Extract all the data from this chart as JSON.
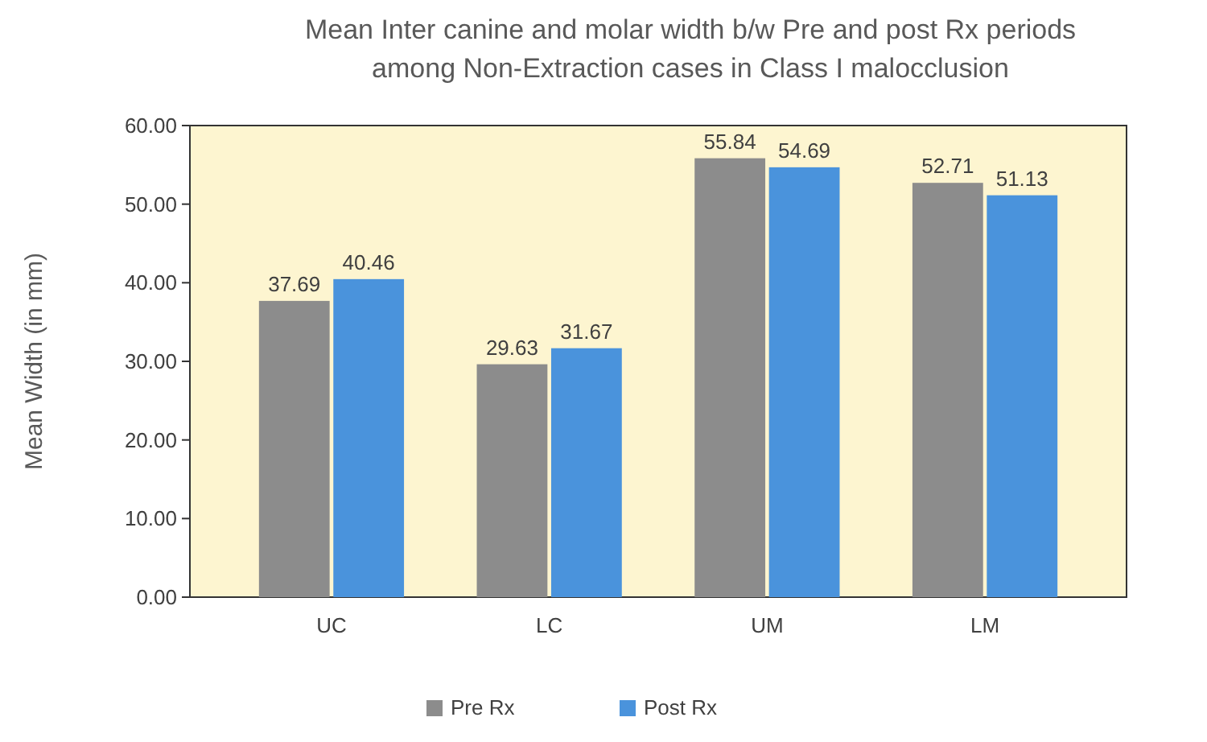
{
  "chart_data": {
    "type": "bar",
    "title": "Mean Inter canine and molar width b/w Pre and post Rx periods\namong Non-Extraction cases in Class I malocclusion",
    "ylabel": "Mean Width (in mm)",
    "categories": [
      "UC",
      "LC",
      "UM",
      "LM"
    ],
    "series": [
      {
        "name": "Pre Rx",
        "color": "#8c8c8c",
        "values": [
          37.69,
          29.63,
          55.84,
          52.71
        ]
      },
      {
        "name": "Post Rx",
        "color": "#4a93dc",
        "values": [
          40.46,
          31.67,
          54.69,
          51.13
        ]
      }
    ],
    "ylim": [
      0,
      60
    ],
    "yticks": [
      {
        "value": 0,
        "label": "0.00"
      },
      {
        "value": 10,
        "label": "10.00"
      },
      {
        "value": 20,
        "label": "20.00"
      },
      {
        "value": 30,
        "label": "30.00"
      },
      {
        "value": 40,
        "label": "40.00"
      },
      {
        "value": 50,
        "label": "50.00"
      },
      {
        "value": 60,
        "label": "60.00"
      }
    ],
    "data_labels": true,
    "legend": "bottom",
    "grid": false
  }
}
